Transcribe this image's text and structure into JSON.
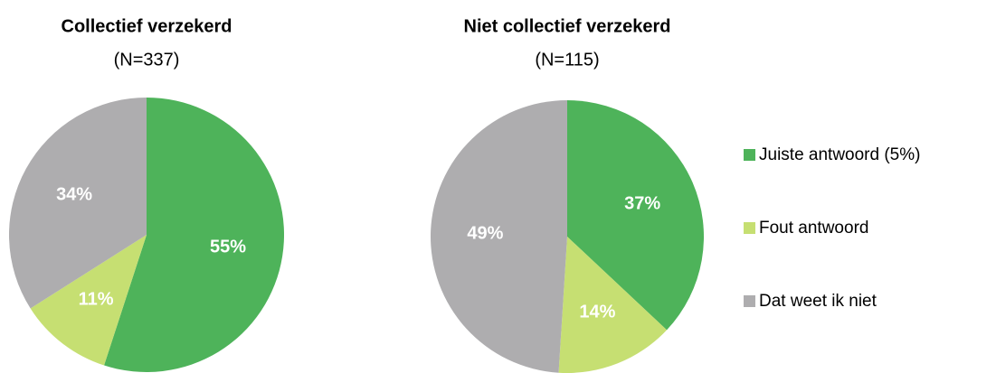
{
  "chart_data": [
    {
      "type": "pie",
      "title": "Collectief verzekerd",
      "subtitle": "(N=337)",
      "categories": [
        "Juiste antwoord (5%)",
        "Fout antwoord",
        "Dat weet ik niet"
      ],
      "values": [
        55,
        11,
        34
      ],
      "value_labels": [
        "55%",
        "11%",
        "34%"
      ],
      "colors": [
        "#4eb35a",
        "#c6df72",
        "#aeadaf"
      ]
    },
    {
      "type": "pie",
      "title": "Niet collectief verzekerd",
      "subtitle": "(N=115)",
      "categories": [
        "Juiste antwoord (5%)",
        "Fout antwoord",
        "Dat weet ik niet"
      ],
      "values": [
        37,
        14,
        49
      ],
      "value_labels": [
        "37%",
        "14%",
        "49%"
      ],
      "colors": [
        "#4eb35a",
        "#c6df72",
        "#aeadaf"
      ]
    }
  ]
}
